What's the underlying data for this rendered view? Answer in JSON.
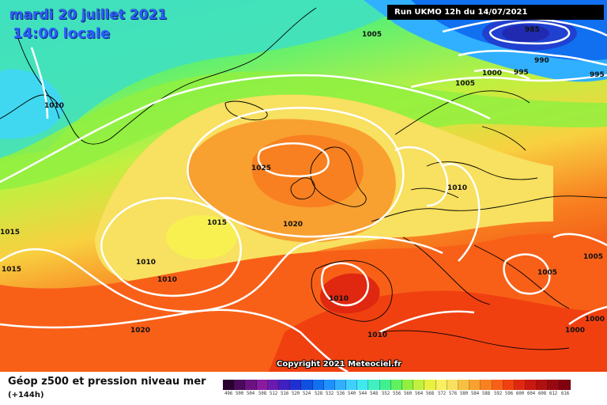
{
  "header": {
    "date_line": "mardi 20 juillet 2021",
    "time_line": "14:00 locale",
    "run_info": "Run UKMO 12h du 14/07/2021"
  },
  "map": {
    "copyright": "Copyright 2021 Meteociel.fr",
    "pressure_labels": [
      "1005",
      "985",
      "990",
      "995",
      "995",
      "1000",
      "1005",
      "1010",
      "1025",
      "1010",
      "1015",
      "1020",
      "1015",
      "1010",
      "1010",
      "1015",
      "1010",
      "1020",
      "1010",
      "1005",
      "1005",
      "1000",
      "1000"
    ]
  },
  "footer": {
    "title": "Géop z500 et pression niveau mer",
    "subtitle": "(+144h)",
    "scale_labels": [
      "496",
      "500",
      "504",
      "508",
      "512",
      "516",
      "520",
      "524",
      "528",
      "532",
      "536",
      "540",
      "544",
      "548",
      "552",
      "556",
      "560",
      "564",
      "568",
      "572",
      "576",
      "580",
      "584",
      "588",
      "592",
      "596",
      "600",
      "604",
      "608",
      "612",
      "616"
    ],
    "scale_colors": [
      "#2a0030",
      "#4a0a5c",
      "#6a1280",
      "#8a1aa0",
      "#6a1ab0",
      "#4020c0",
      "#2030d0",
      "#1050e0",
      "#1070f0",
      "#2090ff",
      "#30b0ff",
      "#40d0ff",
      "#40e8f0",
      "#40f0c0",
      "#40f090",
      "#60f060",
      "#90f040",
      "#c0f040",
      "#e8f040",
      "#f8f060",
      "#f8e060",
      "#f8c040",
      "#f8a030",
      "#f88020",
      "#f86018",
      "#f04010",
      "#e02810",
      "#c81810",
      "#b01010",
      "#980810",
      "#800010"
    ]
  }
}
